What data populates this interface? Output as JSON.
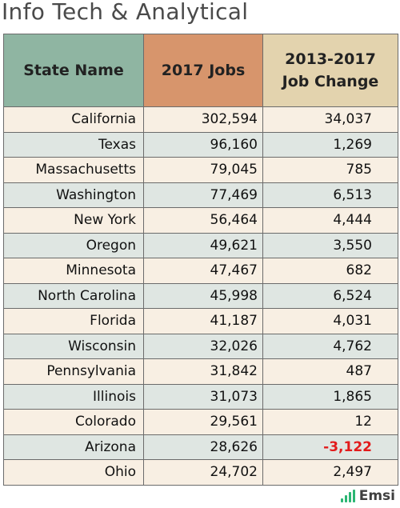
{
  "title": "Info Tech & Analytical",
  "table": {
    "headers": {
      "state": "State Name",
      "jobs": "2017 Jobs",
      "change_line1": "2013-2017",
      "change_line2": "Job Change"
    },
    "rows": [
      {
        "state": "California",
        "jobs": "302,594",
        "change": "34,037"
      },
      {
        "state": "Texas",
        "jobs": "96,160",
        "change": "1,269"
      },
      {
        "state": "Massachusetts",
        "jobs": "79,045",
        "change": "785"
      },
      {
        "state": "Washington",
        "jobs": "77,469",
        "change": "6,513"
      },
      {
        "state": "New York",
        "jobs": "56,464",
        "change": "4,444"
      },
      {
        "state": "Oregon",
        "jobs": "49,621",
        "change": "3,550"
      },
      {
        "state": "Minnesota",
        "jobs": "47,467",
        "change": "682"
      },
      {
        "state": "North Carolina",
        "jobs": "45,998",
        "change": "6,524"
      },
      {
        "state": "Florida",
        "jobs": "41,187",
        "change": "4,031"
      },
      {
        "state": "Wisconsin",
        "jobs": "32,026",
        "change": "4,762"
      },
      {
        "state": "Pennsylvania",
        "jobs": "31,842",
        "change": "487"
      },
      {
        "state": "Illinois",
        "jobs": "31,073",
        "change": "1,865"
      },
      {
        "state": "Colorado",
        "jobs": "29,561",
        "change": "12"
      },
      {
        "state": "Arizona",
        "jobs": "28,626",
        "change": "-3,122"
      },
      {
        "state": "Ohio",
        "jobs": "24,702",
        "change": "2,497"
      }
    ]
  },
  "brand": {
    "name": "Emsi",
    "icon": "emsi-bars-icon"
  },
  "colors": {
    "header_state": "#8fb5a2",
    "header_jobs": "#d7956c",
    "header_change": "#e3d3ae",
    "row_odd": "#f8efe3",
    "row_even": "#dfe6e2",
    "negative": "#e21b1b",
    "brand_green": "#2bb673"
  }
}
